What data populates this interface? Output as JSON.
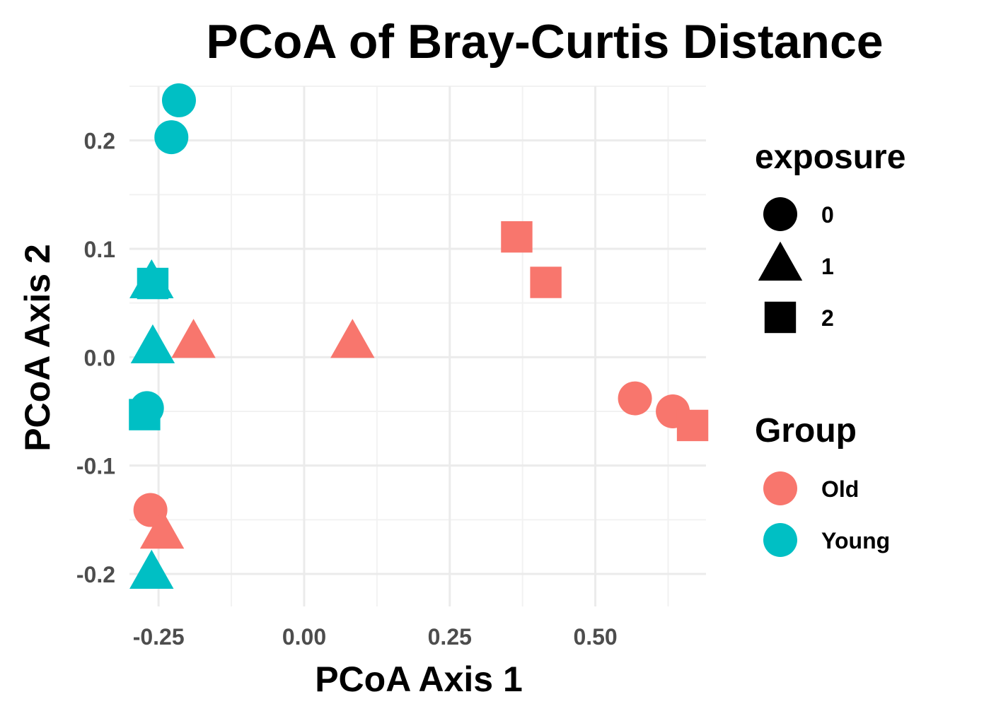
{
  "chart_data": {
    "type": "scatter",
    "title": "PCoA of Bray-Curtis Distance",
    "xlabel": "PCoA Axis 1",
    "ylabel": "PCoA Axis 2",
    "xlim": [
      -0.3,
      0.69
    ],
    "ylim": [
      -0.23,
      0.25
    ],
    "x_ticks": [
      -0.25,
      0.0,
      0.25,
      0.5
    ],
    "x_tick_labels": [
      "-0.25",
      "0.00",
      "0.25",
      "0.50"
    ],
    "y_ticks": [
      -0.2,
      -0.1,
      0.0,
      0.1,
      0.2
    ],
    "y_tick_labels": [
      "-0.2",
      "-0.1",
      "0.0",
      "0.1",
      "0.2"
    ],
    "grid": true,
    "colors": {
      "Old": "#F8766D",
      "Young": "#00BFC4"
    },
    "legend": {
      "placement": "right",
      "shape_title": "exposure",
      "shape_entries": [
        {
          "label": "0",
          "shape": "circle"
        },
        {
          "label": "1",
          "shape": "triangle"
        },
        {
          "label": "2",
          "shape": "square"
        }
      ],
      "color_title": "Group",
      "color_entries": [
        {
          "label": "Old",
          "color": "#F8766D"
        },
        {
          "label": "Young",
          "color": "#00BFC4"
        }
      ]
    },
    "points": [
      {
        "x": -0.215,
        "y": 0.237,
        "group": "Young",
        "exposure": "0"
      },
      {
        "x": -0.228,
        "y": 0.203,
        "group": "Young",
        "exposure": "0"
      },
      {
        "x": -0.262,
        "y": 0.068,
        "group": "Young",
        "exposure": "1"
      },
      {
        "x": -0.26,
        "y": 0.068,
        "group": "Young",
        "exposure": "2"
      },
      {
        "x": -0.26,
        "y": 0.008,
        "group": "Young",
        "exposure": "1"
      },
      {
        "x": -0.27,
        "y": -0.047,
        "group": "Young",
        "exposure": "0"
      },
      {
        "x": -0.274,
        "y": -0.053,
        "group": "Young",
        "exposure": "2"
      },
      {
        "x": -0.262,
        "y": -0.2,
        "group": "Young",
        "exposure": "1"
      },
      {
        "x": -0.19,
        "y": 0.013,
        "group": "Old",
        "exposure": "1"
      },
      {
        "x": 0.083,
        "y": 0.013,
        "group": "Old",
        "exposure": "1"
      },
      {
        "x": 0.365,
        "y": 0.111,
        "group": "Old",
        "exposure": "2"
      },
      {
        "x": 0.415,
        "y": 0.069,
        "group": "Old",
        "exposure": "2"
      },
      {
        "x": 0.568,
        "y": -0.038,
        "group": "Old",
        "exposure": "0"
      },
      {
        "x": 0.633,
        "y": -0.05,
        "group": "Old",
        "exposure": "0"
      },
      {
        "x": 0.667,
        "y": -0.063,
        "group": "Old",
        "exposure": "2"
      },
      {
        "x": -0.264,
        "y": -0.141,
        "group": "Old",
        "exposure": "0"
      },
      {
        "x": -0.244,
        "y": -0.163,
        "group": "Old",
        "exposure": "1"
      }
    ]
  }
}
